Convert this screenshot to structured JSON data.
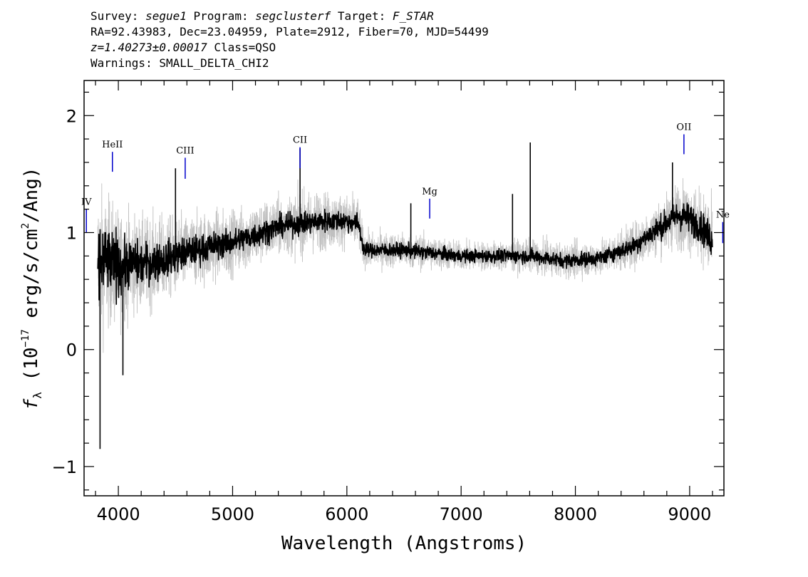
{
  "header": {
    "survey_label": "Survey:",
    "survey": "segue1",
    "program_label": "Program:",
    "program": "segclusterf",
    "target_label": "Target:",
    "target": "F_STAR",
    "line2": "RA=92.43983, Dec=23.04959, Plate=2912, Fiber=70, MJD=54499",
    "redshift": "z=1.40273±0.00017",
    "class": "Class=QSO",
    "warnings": "Warnings: SMALL_DELTA_CHI2"
  },
  "chart_data": {
    "type": "line",
    "xlabel": "Wavelength (Angstroms)",
    "ylabel_parts": {
      "f": "f",
      "sub": "λ",
      "open": " (10",
      "exp": "−17",
      "mid": " erg/s/cm",
      "exp2": "2",
      "close": "/Ang)"
    },
    "xlim": [
      3700,
      9300
    ],
    "ylim": [
      -1.25,
      2.3
    ],
    "x_ticks": [
      4000,
      5000,
      6000,
      7000,
      8000,
      9000
    ],
    "x_tick_labels": [
      "4000",
      "5000",
      "6000",
      "7000",
      "8000",
      "9000"
    ],
    "y_ticks": [
      -1,
      0,
      1,
      2
    ],
    "y_tick_labels": [
      "−1",
      "0",
      "1",
      "2"
    ],
    "series": [
      {
        "role": "raw-flux",
        "color": "#c0c0c0",
        "x": [
          3820,
          3900,
          4000,
          4100,
          4200,
          4400,
          4600,
          4800,
          5000,
          5200,
          5400,
          5600,
          5800,
          6000,
          6100,
          6150,
          6300,
          6500,
          6700,
          7000,
          7300,
          7600,
          7900,
          8200,
          8500,
          8700,
          8900,
          9000,
          9100,
          9200
        ],
        "y": [
          0.72,
          0.75,
          0.7,
          0.74,
          0.73,
          0.77,
          0.83,
          0.88,
          0.92,
          0.98,
          1.05,
          1.08,
          1.1,
          1.1,
          1.08,
          0.85,
          0.85,
          0.85,
          0.83,
          0.8,
          0.8,
          0.8,
          0.76,
          0.78,
          0.88,
          1.02,
          1.15,
          1.12,
          1.05,
          0.92
        ],
        "noise": [
          0.55,
          0.45,
          0.4,
          0.35,
          0.32,
          0.3,
          0.25,
          0.25,
          0.22,
          0.22,
          0.2,
          0.22,
          0.2,
          0.18,
          0.18,
          0.12,
          0.12,
          0.12,
          0.12,
          0.1,
          0.1,
          0.11,
          0.12,
          0.12,
          0.15,
          0.18,
          0.22,
          0.24,
          0.24,
          0.28
        ]
      },
      {
        "role": "smoothed-flux",
        "color": "#000000",
        "x": [
          3820,
          3900,
          4000,
          4100,
          4200,
          4400,
          4600,
          4800,
          5000,
          5200,
          5400,
          5600,
          5800,
          6000,
          6100,
          6150,
          6300,
          6500,
          6700,
          7000,
          7300,
          7600,
          7900,
          8200,
          8500,
          8700,
          8900,
          9000,
          9100,
          9200
        ],
        "y": [
          0.72,
          0.75,
          0.7,
          0.74,
          0.73,
          0.77,
          0.83,
          0.88,
          0.92,
          0.98,
          1.05,
          1.08,
          1.1,
          1.1,
          1.08,
          0.85,
          0.85,
          0.85,
          0.83,
          0.8,
          0.8,
          0.8,
          0.76,
          0.78,
          0.88,
          1.02,
          1.15,
          1.12,
          1.05,
          0.92
        ],
        "noise": [
          0.3,
          0.25,
          0.2,
          0.17,
          0.15,
          0.13,
          0.11,
          0.1,
          0.09,
          0.09,
          0.08,
          0.08,
          0.08,
          0.07,
          0.07,
          0.05,
          0.05,
          0.05,
          0.05,
          0.045,
          0.045,
          0.05,
          0.05,
          0.05,
          0.06,
          0.08,
          0.1,
          0.11,
          0.11,
          0.12
        ],
        "spikes": [
          {
            "x": 3840,
            "y": -0.85
          },
          {
            "x": 3980,
            "y": 1.05
          },
          {
            "x": 4040,
            "y": -0.22
          },
          {
            "x": 4500,
            "y": 1.55
          },
          {
            "x": 5590,
            "y": 1.72
          },
          {
            "x": 6560,
            "y": 1.25
          },
          {
            "x": 7450,
            "y": 1.33
          },
          {
            "x": 7605,
            "y": 1.77
          },
          {
            "x": 8850,
            "y": 1.6
          }
        ]
      }
    ],
    "line_markers": [
      {
        "label": "IV",
        "x": 3720,
        "y_bottom": 1.0,
        "y_top": 1.2,
        "color": "#0000cc"
      },
      {
        "label": "HeII",
        "x": 3948,
        "y_bottom": 1.52,
        "y_top": 1.69,
        "color": "#0000cc"
      },
      {
        "label": "CIII",
        "x": 4585,
        "y_bottom": 1.46,
        "y_top": 1.64,
        "color": "#0000cc"
      },
      {
        "label": "CII",
        "x": 5590,
        "y_bottom": 1.55,
        "y_top": 1.73,
        "color": "#0000cc"
      },
      {
        "label": "Mg",
        "x": 6725,
        "y_bottom": 1.12,
        "y_top": 1.29,
        "color": "#0000cc"
      },
      {
        "label": "OII",
        "x": 8950,
        "y_bottom": 1.67,
        "y_top": 1.84,
        "color": "#0000cc"
      },
      {
        "label": "Ne",
        "x": 9290,
        "y_bottom": 0.91,
        "y_top": 1.09,
        "color": "#0000cc"
      }
    ]
  }
}
